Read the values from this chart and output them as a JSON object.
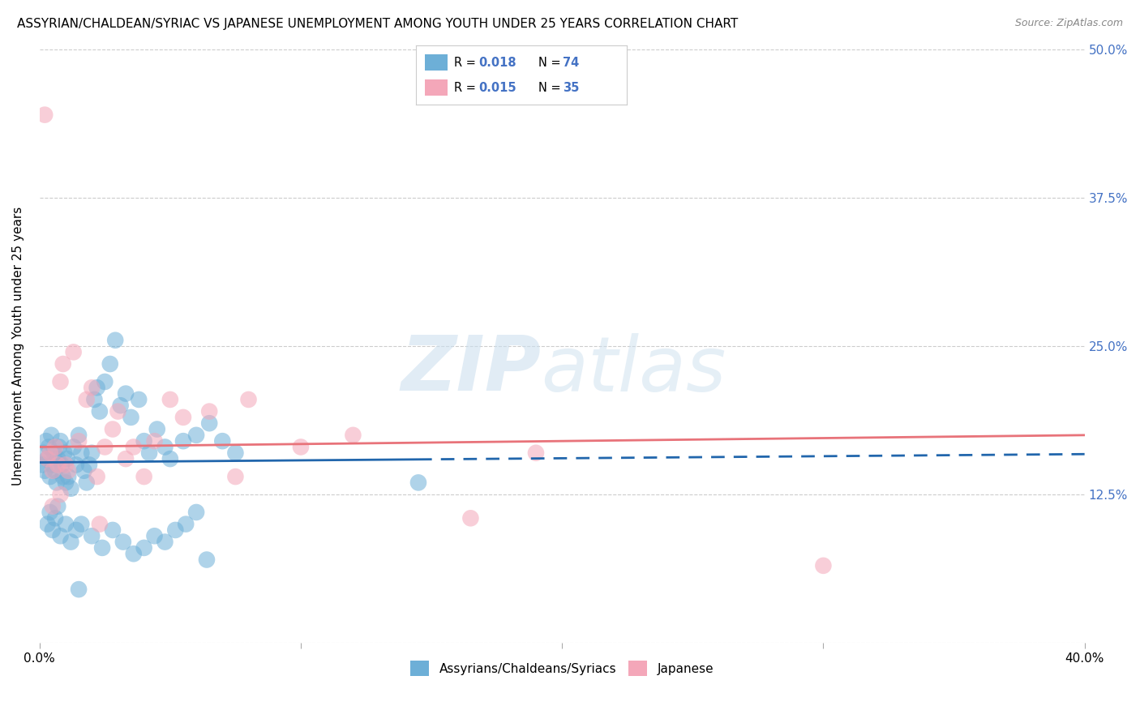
{
  "title": "ASSYRIAN/CHALDEAN/SYRIAC VS JAPANESE UNEMPLOYMENT AMONG YOUTH UNDER 25 YEARS CORRELATION CHART",
  "source": "Source: ZipAtlas.com",
  "ylabel": "Unemployment Among Youth under 25 years",
  "xlim": [
    0.0,
    40.0
  ],
  "ylim": [
    0.0,
    50.0
  ],
  "yticks": [
    0.0,
    12.5,
    25.0,
    37.5,
    50.0
  ],
  "ytick_labels": [
    "",
    "12.5%",
    "25.0%",
    "37.5%",
    "50.0%"
  ],
  "xticks": [
    0.0,
    10.0,
    20.0,
    30.0,
    40.0
  ],
  "blue_color": "#6dafd7",
  "pink_color": "#f4a7b9",
  "blue_line_color": "#2166ac",
  "pink_line_color": "#e8737a",
  "r_n_color": "#4472c4",
  "background_color": "#ffffff",
  "blue_scatter_x": [
    0.1,
    0.15,
    0.2,
    0.25,
    0.3,
    0.35,
    0.4,
    0.45,
    0.5,
    0.55,
    0.6,
    0.65,
    0.7,
    0.75,
    0.8,
    0.85,
    0.9,
    0.95,
    1.0,
    1.05,
    1.1,
    1.2,
    1.3,
    1.4,
    1.5,
    1.6,
    1.7,
    1.8,
    1.9,
    2.0,
    2.1,
    2.2,
    2.3,
    2.5,
    2.7,
    2.9,
    3.1,
    3.3,
    3.5,
    3.8,
    4.0,
    4.2,
    4.5,
    4.8,
    5.0,
    5.5,
    6.0,
    6.5,
    7.0,
    7.5,
    0.3,
    0.4,
    0.5,
    0.6,
    0.7,
    0.8,
    1.0,
    1.2,
    1.4,
    1.6,
    2.0,
    2.4,
    2.8,
    3.2,
    3.6,
    4.0,
    4.4,
    4.8,
    5.2,
    5.6,
    6.0,
    6.4,
    14.5,
    1.5
  ],
  "blue_scatter_y": [
    15.0,
    16.0,
    14.5,
    17.0,
    15.5,
    16.5,
    14.0,
    17.5,
    15.0,
    16.0,
    14.5,
    13.5,
    15.5,
    16.5,
    17.0,
    15.0,
    14.0,
    16.0,
    13.5,
    15.5,
    14.0,
    13.0,
    16.5,
    15.0,
    17.5,
    16.0,
    14.5,
    13.5,
    15.0,
    16.0,
    20.5,
    21.5,
    19.5,
    22.0,
    23.5,
    25.5,
    20.0,
    21.0,
    19.0,
    20.5,
    17.0,
    16.0,
    18.0,
    16.5,
    15.5,
    17.0,
    17.5,
    18.5,
    17.0,
    16.0,
    10.0,
    11.0,
    9.5,
    10.5,
    11.5,
    9.0,
    10.0,
    8.5,
    9.5,
    10.0,
    9.0,
    8.0,
    9.5,
    8.5,
    7.5,
    8.0,
    9.0,
    8.5,
    9.5,
    10.0,
    11.0,
    7.0,
    13.5,
    4.5
  ],
  "pink_scatter_x": [
    0.2,
    0.3,
    0.4,
    0.5,
    0.6,
    0.7,
    0.8,
    0.9,
    1.0,
    1.1,
    1.3,
    1.5,
    1.8,
    2.0,
    2.2,
    2.5,
    2.8,
    3.0,
    3.3,
    3.6,
    4.0,
    4.4,
    5.0,
    5.5,
    6.5,
    8.0,
    10.0,
    12.0,
    16.5,
    19.0,
    2.3,
    0.5,
    0.8,
    30.0,
    7.5
  ],
  "pink_scatter_y": [
    44.5,
    15.5,
    16.0,
    14.5,
    16.5,
    15.0,
    22.0,
    23.5,
    15.0,
    14.5,
    24.5,
    17.0,
    20.5,
    21.5,
    14.0,
    16.5,
    18.0,
    19.5,
    15.5,
    16.5,
    14.0,
    17.0,
    20.5,
    19.0,
    19.5,
    20.5,
    16.5,
    17.5,
    10.5,
    16.0,
    10.0,
    11.5,
    12.5,
    6.5,
    14.0
  ],
  "blue_trend_x0": 0.0,
  "blue_trend_x_solid_end": 14.5,
  "blue_trend_x_end": 40.0,
  "blue_trend_y_at_0": 15.2,
  "blue_trend_y_at_end": 15.9,
  "pink_trend_y_at_0": 16.5,
  "pink_trend_y_at_end": 17.5
}
